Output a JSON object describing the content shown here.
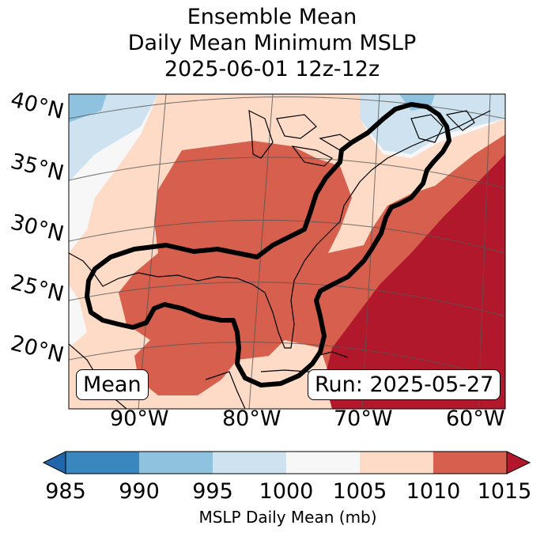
{
  "title": {
    "line1": "Ensemble Mean",
    "line2": "Daily Mean Minimum MSLP",
    "line3": "2025-06-01 12z-12z"
  },
  "map": {
    "lat_labels": [
      "40°N",
      "35°N",
      "30°N",
      "25°N",
      "20°N"
    ],
    "lon_labels": [
      "90°W",
      "80°W",
      "70°W",
      "60°W"
    ],
    "mean_box": "Mean",
    "run_box": "Run: 2025-05-27"
  },
  "colorbar": {
    "ticks": [
      "985",
      "990",
      "995",
      "1000",
      "1005",
      "1010",
      "1015"
    ],
    "colors": [
      "#3a86bf",
      "#8fc2de",
      "#cee3ef",
      "#f7f7f7",
      "#fddbc7",
      "#d6604d",
      "#b2182b"
    ],
    "label": "MSLP Daily Mean (mb)"
  },
  "field_colors": {
    "c990": "#8fc2de",
    "c995": "#cee3ef",
    "c1000": "#f7f7f7",
    "c1005": "#fddbc7",
    "c1010": "#d6604d",
    "c1015": "#b2182b"
  }
}
